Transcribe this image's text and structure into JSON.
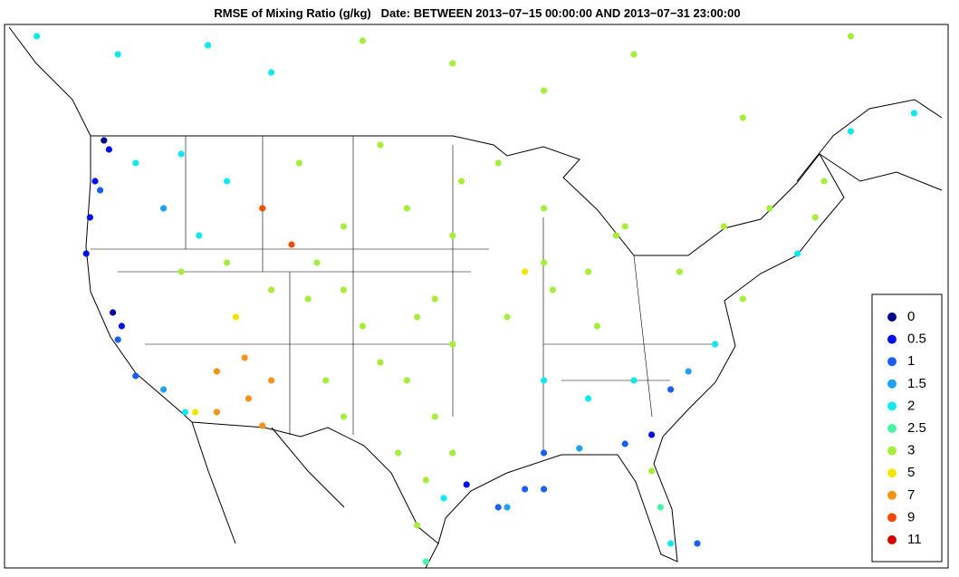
{
  "chart_data": {
    "type": "scatter",
    "title": "RMSE of Mixing Ratio (g/kg)   Date: BETWEEN 2013−07−15 00:00:00 AND 2013−07−31 23:00:00",
    "lon": [
      -123.8,
      -123.4,
      -124.5,
      -124.9,
      -125.2,
      -124.1,
      -121.3,
      -117.7,
      -114.1,
      -119.1,
      -116.3,
      -111.3,
      -109,
      -123.1,
      -122.4,
      -122.7,
      -121.3,
      -119.1,
      -117.4,
      -117.7,
      -114.1,
      -110.6,
      -113.4,
      -114.9,
      -112.7,
      -112.4,
      -110.6,
      -111.3,
      -114.9,
      -116.6,
      -107.7,
      -104.9,
      -103.4,
      -106.3,
      -104.9,
      -102,
      -99.9,
      -97.7,
      -96.3,
      -100.6,
      -98.4,
      -97,
      -99.1,
      -95.2,
      -99.1,
      -96.3,
      -97.7,
      -108.4,
      -102,
      -99.9,
      -95.6,
      -104.9,
      -96.3,
      -107,
      -92.7,
      -89.1,
      -89.1,
      -88.4,
      -90.6,
      -92,
      -85.6,
      -83.4,
      -82.7,
      -84.9,
      -89.1,
      -85.6,
      -82,
      -79.1,
      -77.7,
      -75.6,
      -80.6,
      -82.7,
      -89.1,
      -90.6,
      -86.3,
      -92.7,
      -80.6,
      -79.9,
      -79.1,
      -77,
      -78.4,
      -74.9,
      -71.3,
      -69.1,
      -73.4,
      -67.7,
      -67,
      -129.1,
      -122.7,
      -115.6,
      -110.6,
      -103.4,
      -96.3,
      -89.1,
      -82,
      -73.4,
      -64.9,
      -64.9,
      -59.9,
      -98.4,
      -92,
      -89.1
    ],
    "lat": [
      48.25,
      47.75,
      46,
      44,
      42,
      45.5,
      47,
      47.5,
      46,
      44.5,
      43,
      44.5,
      42.5,
      38.75,
      38,
      37.25,
      35.25,
      34.5,
      33.25,
      41,
      41.5,
      40,
      38.5,
      35.5,
      36.25,
      34,
      35,
      32.5,
      33.25,
      33.25,
      39.5,
      40,
      38,
      35,
      33,
      36,
      35,
      33,
      31,
      31,
      29.5,
      28.5,
      27,
      29.25,
      38.5,
      37,
      39.5,
      47,
      48,
      44.5,
      46,
      43.5,
      43,
      41.5,
      47,
      44.5,
      41.5,
      40,
      41,
      38.5,
      41,
      43,
      43.5,
      38,
      35,
      34,
      35,
      34.5,
      35.5,
      37,
      32,
      31.5,
      31,
      29,
      31.25,
      28,
      30,
      28,
      26,
      26,
      41,
      43.5,
      44.5,
      42,
      39.5,
      44,
      46,
      54,
      53,
      53.5,
      52,
      53.75,
      52.5,
      51,
      53,
      49.5,
      54,
      48.75,
      49.75,
      25,
      28,
      29
    ],
    "values": [
      0.3,
      0.8,
      0.7,
      0.8,
      0.9,
      1.3,
      2.0,
      2.1,
      2.2,
      1.8,
      2.4,
      10.5,
      10.8,
      0.4,
      0.8,
      1.2,
      1.4,
      1.9,
      2.2,
      3.2,
      3.1,
      3.3,
      5.2,
      7.1,
      7.2,
      8.6,
      7.5,
      7.3,
      7.0,
      6.8,
      3.2,
      4.2,
      4.3,
      4.1,
      4.4,
      4.2,
      4.5,
      4.8,
      4.6,
      4.3,
      4.7,
      2.2,
      3.0,
      0.7,
      4.3,
      4.6,
      3.2,
      3.0,
      3.1,
      3.2,
      3.0,
      3.1,
      3.3,
      3.0,
      3.1,
      3.2,
      4.5,
      4.4,
      6.8,
      3.2,
      3.1,
      4.3,
      4.5,
      3.0,
      2.4,
      2.2,
      2.0,
      1.1,
      1.8,
      2.0,
      0.8,
      1.0,
      1.2,
      1.3,
      1.6,
      1.4,
      3.0,
      2.6,
      2.2,
      1.4,
      3.1,
      3.2,
      3.0,
      2.4,
      3.2,
      3.1,
      3.0,
      2.0,
      2.1,
      2.0,
      2.2,
      3.1,
      3.0,
      3.1,
      3.0,
      3.1,
      3.0,
      2.2,
      2.3,
      2.5,
      1.5,
      1.2
    ],
    "legend_levels": [
      0,
      0.5,
      1,
      1.5,
      2,
      2.5,
      3,
      5,
      7,
      9,
      11
    ],
    "colors": [
      "#00008f",
      "#0010e8",
      "#1a5ff0",
      "#1ea2f2",
      "#10e8f0",
      "#4cf0a8",
      "#a6ee3c",
      "#f2e600",
      "#f39418",
      "#f24a08",
      "#d40000"
    ]
  }
}
